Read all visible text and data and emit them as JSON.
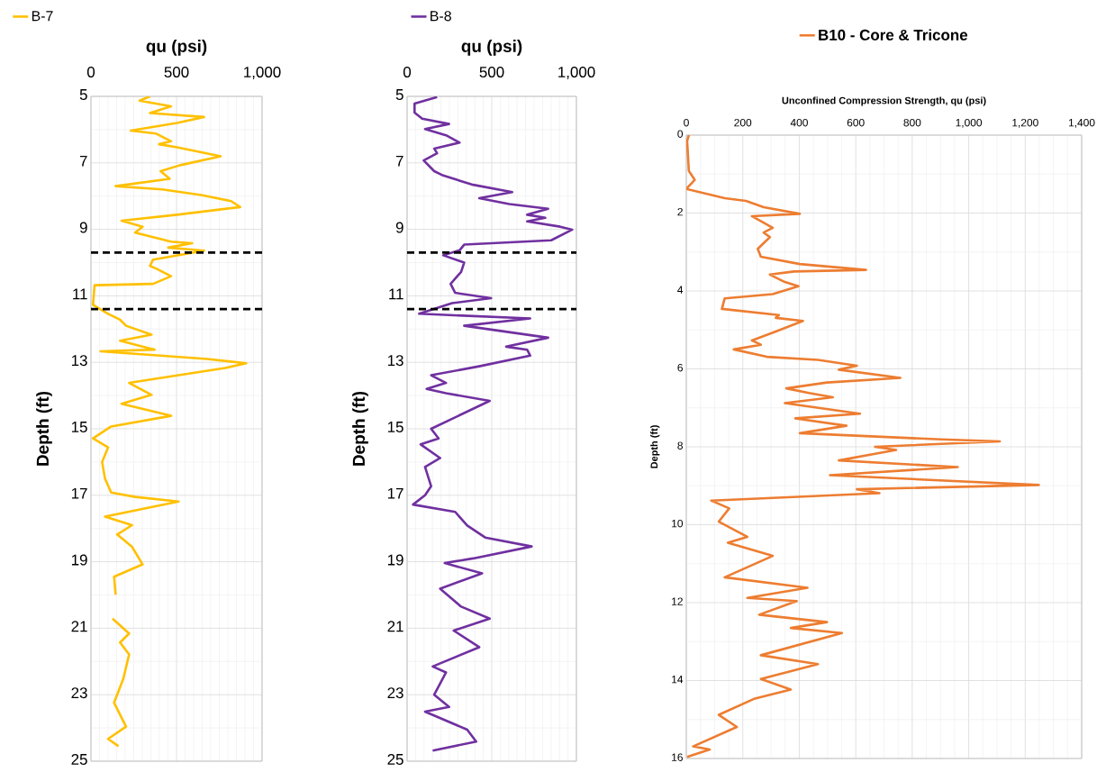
{
  "chart_data": [
    {
      "type": "line",
      "xlabel": "qu (psi)",
      "ylabel": "Depth (ft)",
      "xlim": [
        0,
        1000
      ],
      "ylim": [
        25,
        5
      ],
      "xticks": [
        0,
        500,
        {
          "value": 1000,
          "label": "1,000"
        }
      ],
      "yticks": [
        5,
        7,
        9,
        11,
        13,
        15,
        17,
        19,
        21,
        23,
        25
      ],
      "grid": true,
      "legend": "top left",
      "ref_lines": [
        {
          "axis": "y",
          "value": 9.7,
          "color": "#000000",
          "line_style": "dashed"
        },
        {
          "axis": "y",
          "value": 11.4,
          "color": "#000000",
          "line_style": "dashed"
        }
      ],
      "series": [
        {
          "name": "B-7",
          "color": "#ffc000",
          "x": [
            345,
            284,
            468,
            345,
            661,
            503,
            232,
            381,
            468,
            398,
            503,
            758,
            521,
            407,
            460,
            144,
            416,
            644,
            819,
            872,
            503,
            179,
            302,
            258,
            468,
            591,
            451,
            661,
            363,
            345,
            381,
            468,
            363,
            21,
            12,
            100,
            170,
            205,
            354,
            170,
            372,
            56,
            679,
            907,
            784,
            223,
            354,
            179,
            468,
            118,
            12,
            100,
            65,
            82,
            118,
            258,
            512,
            82,
            240,
            153,
            240,
            302,
            135,
            144,
            null,
            126,
            223,
            170,
            223,
            189,
            135,
            205,
            100,
            161
          ],
          "values": [
            5.0,
            5.13,
            5.3,
            5.5,
            5.62,
            5.8,
            6.03,
            6.12,
            6.35,
            6.44,
            6.53,
            6.8,
            7.07,
            7.25,
            7.48,
            7.7,
            7.8,
            7.97,
            8.15,
            8.33,
            8.56,
            8.74,
            8.92,
            9.1,
            9.37,
            9.42,
            9.55,
            9.64,
            9.91,
            10.1,
            10.18,
            10.41,
            10.64,
            10.68,
            11.27,
            11.54,
            11.72,
            11.9,
            12.17,
            12.35,
            12.62,
            12.67,
            12.9,
            13.03,
            13.17,
            13.62,
            13.98,
            14.25,
            14.61,
            14.93,
            15.29,
            15.56,
            16.0,
            16.5,
            16.92,
            17.05,
            17.19,
            17.64,
            17.9,
            18.18,
            18.55,
            19.08,
            19.45,
            19.99,
            null,
            20.71,
            21.16,
            21.43,
            21.79,
            22.52,
            23.24,
            23.96,
            24.33,
            24.55
          ]
        }
      ]
    },
    {
      "type": "line",
      "xlabel": "qu (psi)",
      "ylabel": "Depth (ft)",
      "xlim": [
        0,
        1000
      ],
      "ylim": [
        25,
        5
      ],
      "xticks": [
        0,
        500,
        {
          "value": 1000,
          "label": "1,000"
        }
      ],
      "yticks": [
        5,
        7,
        9,
        11,
        13,
        15,
        17,
        19,
        21,
        23,
        25
      ],
      "grid": true,
      "legend": "top left",
      "ref_lines": [
        {
          "axis": "y",
          "value": 9.7,
          "color": "#000000",
          "line_style": "dashed"
        },
        {
          "axis": "y",
          "value": 11.4,
          "color": "#000000",
          "line_style": "dashed"
        }
      ],
      "series": [
        {
          "name": "B-8",
          "color": "#7030a0",
          "x": [
            177,
            44,
            44,
            89,
            248,
            106,
            230,
            310,
            160,
            177,
            98,
            160,
            213,
            390,
            621,
            426,
            603,
            833,
            709,
            816,
            709,
            904,
            975,
            851,
            337,
            310,
            213,
            337,
            319,
            257,
            284,
            496,
            266,
            71,
            727,
            337,
            833,
            585,
            709,
            727,
            426,
            142,
            230,
            115,
            230,
            488,
            142,
            186,
            80,
            195,
            106,
            142,
            106,
            35,
            284,
            355,
            461,
            736,
            390,
            222,
            443,
            195,
            319,
            488,
            275,
            426,
            151,
            230,
            160,
            248,
            106,
            355,
            408,
            151
          ],
          "values": [
            5.02,
            5.22,
            5.49,
            5.67,
            5.83,
            5.98,
            6.17,
            6.39,
            6.57,
            6.71,
            6.93,
            7.25,
            7.38,
            7.66,
            7.88,
            8.06,
            8.24,
            8.38,
            8.56,
            8.65,
            8.76,
            8.92,
            9.01,
            9.33,
            9.46,
            9.63,
            9.78,
            10.0,
            10.28,
            10.64,
            10.91,
            11.07,
            11.22,
            11.54,
            11.68,
            11.9,
            12.26,
            12.53,
            12.62,
            12.8,
            13.12,
            13.39,
            13.62,
            13.8,
            13.93,
            14.16,
            15.0,
            15.29,
            15.47,
            15.88,
            16.15,
            16.73,
            17.0,
            17.28,
            17.5,
            17.91,
            18.27,
            18.54,
            18.9,
            19.04,
            19.35,
            19.81,
            20.35,
            20.71,
            21.07,
            21.57,
            22.15,
            22.33,
            23.0,
            23.37,
            23.51,
            24.05,
            24.41,
            24.68
          ]
        }
      ]
    },
    {
      "type": "line",
      "xlabel": "Unconfined Compression Strength, qu (psi)",
      "ylabel": "Depth (ft)",
      "xlim": [
        0,
        1400
      ],
      "ylim": [
        16,
        0
      ],
      "xticks": [
        0,
        200,
        400,
        600,
        800,
        {
          "value": 1000,
          "label": "1,000"
        },
        {
          "value": 1200,
          "label": "1,200"
        },
        {
          "value": 1400,
          "label": "1,400"
        }
      ],
      "yticks": [
        0,
        2,
        4,
        6,
        8,
        10,
        12,
        14,
        16
      ],
      "grid": true,
      "legend": "top",
      "series": [
        {
          "name": "B10 - Core & Tricone",
          "color": "#ed7d31",
          "x": [
            9,
            3,
            9,
            30,
            0,
            136,
            211,
            274,
            402,
            232,
            306,
            274,
            296,
            253,
            264,
            402,
            636,
            381,
            296,
            349,
            397,
            306,
            136,
            126,
            328,
            317,
            413,
            317,
            232,
            264,
            168,
            285,
            466,
            604,
            540,
            758,
            498,
            354,
            434,
            519,
            349,
            615,
            386,
            567,
            402,
            902,
            1110,
            668,
            743,
            540,
            961,
            509,
            1248,
            604,
            684,
            88,
            152,
            115,
            216,
            147,
            306,
            136,
            429,
            216,
            391,
            258,
            498,
            370,
            551,
            264,
            466,
            264,
            370,
            243,
            115,
            179,
            24,
            83,
            3
          ],
          "values": [
            0,
            0.15,
            0.92,
            1.15,
            1.38,
            1.62,
            1.69,
            1.85,
            2.02,
            2.08,
            2.38,
            2.5,
            2.62,
            2.92,
            3.12,
            3.31,
            3.46,
            3.5,
            3.58,
            3.77,
            3.88,
            4.08,
            4.19,
            4.46,
            4.62,
            4.69,
            4.77,
            5.04,
            5.27,
            5.38,
            5.5,
            5.69,
            5.77,
            5.92,
            6.02,
            6.23,
            6.35,
            6.5,
            6.62,
            6.73,
            6.88,
            7.15,
            7.27,
            7.46,
            7.65,
            7.81,
            7.86,
            8.0,
            8.08,
            8.35,
            8.52,
            8.73,
            8.98,
            9.09,
            9.19,
            9.38,
            9.58,
            9.92,
            10.31,
            10.46,
            10.8,
            11.35,
            11.62,
            11.88,
            11.96,
            12.31,
            12.5,
            12.65,
            12.78,
            13.35,
            13.58,
            13.96,
            14.23,
            14.46,
            14.88,
            15.19,
            15.69,
            15.77,
            15.96
          ]
        }
      ]
    }
  ]
}
